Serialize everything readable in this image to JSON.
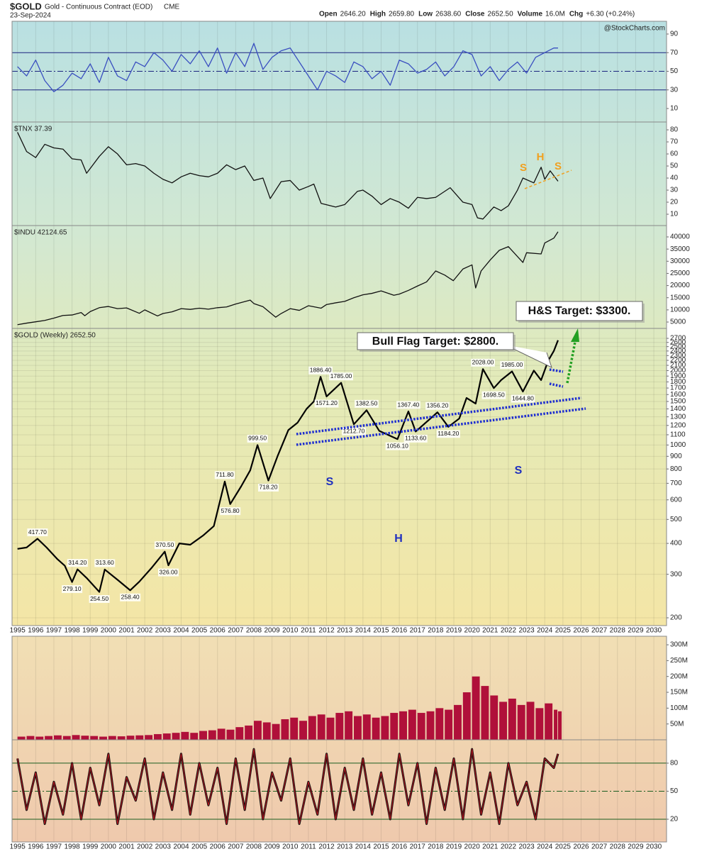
{
  "header": {
    "symbol": "$GOLD",
    "description": "Gold - Continuous Contract (EOD)",
    "exchange": "CME",
    "date": "23-Sep-2024",
    "quote": [
      {
        "label": "Open",
        "value": "2646.20"
      },
      {
        "label": "High",
        "value": "2659.80"
      },
      {
        "label": "Low",
        "value": "2638.60"
      },
      {
        "label": "Close",
        "value": "2652.50"
      },
      {
        "label": "Volume",
        "value": "16.0M"
      },
      {
        "label": "Chg",
        "value": "+6.30 (+0.24%)"
      }
    ],
    "watermark": "@StockCharts.com"
  },
  "chart_data": [
    {
      "type": "line",
      "color": "#3a4fc0",
      "ylim": [
        -4.5,
        103.7
      ],
      "yticks": [
        10,
        30,
        50,
        70,
        90
      ],
      "xlim": [
        1994.7,
        2030.7
      ],
      "reference_lines": [
        {
          "value": 70,
          "style": "solid"
        },
        {
          "value": 50,
          "style": "dashdot"
        },
        {
          "value": 30,
          "style": "solid"
        }
      ],
      "x": [
        1995,
        1995.5,
        1996,
        1996.5,
        1997,
        1997.5,
        1998,
        1998.5,
        1999,
        1999.5,
        2000,
        2000.5,
        2001,
        2001.5,
        2002,
        2002.5,
        2003,
        2003.5,
        2004,
        2004.5,
        2005,
        2005.5,
        2006,
        2006.5,
        2007,
        2007.5,
        2008,
        2008.5,
        2009,
        2009.5,
        2010,
        2010.5,
        2011,
        2011.5,
        2012,
        2012.5,
        2013,
        2013.5,
        2014,
        2014.5,
        2015,
        2015.5,
        2016,
        2016.5,
        2017,
        2017.5,
        2018,
        2018.5,
        2019,
        2019.5,
        2020,
        2020.5,
        2021,
        2021.5,
        2022,
        2022.5,
        2023,
        2023.5,
        2024,
        2024.5,
        2024.73
      ],
      "values": [
        55,
        45,
        62,
        40,
        28,
        35,
        48,
        42,
        58,
        38,
        65,
        45,
        40,
        60,
        55,
        70,
        62,
        50,
        68,
        58,
        72,
        55,
        75,
        48,
        70,
        55,
        80,
        52,
        65,
        72,
        75,
        60,
        45,
        30,
        50,
        45,
        38,
        60,
        55,
        42,
        50,
        35,
        62,
        58,
        48,
        52,
        60,
        45,
        55,
        72,
        68,
        45,
        55,
        40,
        52,
        60,
        48,
        65,
        70,
        75,
        75
      ]
    },
    {
      "type": "line",
      "title": "$TNX 37.39",
      "color": "#111111",
      "ylim": [
        0.6,
        86.5
      ],
      "yticks": [
        10,
        20,
        30,
        40,
        50,
        60,
        70,
        80
      ],
      "xlim": [
        1994.7,
        2030.7
      ],
      "pattern_labels": [
        "S",
        "H",
        "S"
      ],
      "x": [
        1995,
        1995.5,
        1996,
        1996.5,
        1997,
        1997.5,
        1998,
        1998.5,
        1998.8,
        1999.5,
        2000,
        2000.5,
        2001,
        2001.5,
        2002,
        2002.5,
        2003,
        2003.5,
        2004,
        2004.5,
        2005,
        2005.5,
        2006,
        2006.5,
        2007,
        2007.5,
        2008,
        2008.5,
        2008.9,
        2009.5,
        2010,
        2010.5,
        2011,
        2011.3,
        2011.7,
        2012.5,
        2013,
        2013.7,
        2014,
        2014.5,
        2015,
        2015.5,
        2016,
        2016.5,
        2017,
        2017.5,
        2018,
        2018.8,
        2019.5,
        2020,
        2020.3,
        2020.6,
        2021.2,
        2021.6,
        2022,
        2022.5,
        2022.8,
        2023.4,
        2023.8,
        2024,
        2024.3,
        2024.73
      ],
      "values": [
        78,
        62,
        57,
        68,
        65,
        64,
        56,
        55,
        44,
        58,
        66,
        60,
        51,
        52,
        50,
        44,
        39,
        36,
        41,
        44,
        42,
        41,
        44,
        51,
        47,
        50,
        38,
        40,
        23,
        37,
        38,
        30,
        33,
        35,
        19,
        16,
        18,
        29,
        30,
        25,
        18,
        23,
        20,
        15,
        24,
        23,
        24,
        32,
        20,
        18,
        7,
        6,
        16,
        13,
        17,
        30,
        40,
        36,
        49,
        39,
        46,
        37.39
      ]
    },
    {
      "type": "line",
      "title": "$INDU 42124.65",
      "color": "#111111",
      "ylim": [
        2380,
        44670
      ],
      "yticks": [
        5000,
        10000,
        15000,
        20000,
        25000,
        30000,
        35000,
        40000
      ],
      "xlim": [
        1994.7,
        2030.7
      ],
      "x": [
        1995,
        1995.5,
        1996,
        1996.5,
        1997,
        1997.5,
        1998,
        1998.5,
        1998.7,
        1999,
        1999.5,
        2000,
        2000.5,
        2001,
        2001.7,
        2002,
        2002.7,
        2003,
        2003.5,
        2004,
        2004.5,
        2005,
        2005.5,
        2006,
        2006.5,
        2007,
        2007.8,
        2008,
        2008.5,
        2009.2,
        2009.5,
        2010,
        2010.5,
        2011,
        2011.7,
        2012,
        2012.5,
        2013,
        2013.5,
        2014,
        2014.5,
        2015,
        2015.7,
        2016,
        2016.5,
        2017,
        2017.5,
        2018,
        2018.5,
        2018.97,
        2019.5,
        2020,
        2020.2,
        2020.5,
        2021,
        2021.5,
        2022,
        2022.8,
        2023,
        2023.8,
        2024,
        2024.5,
        2024.73
      ],
      "values": [
        3900,
        4550,
        5100,
        5650,
        6600,
        7700,
        7900,
        8900,
        7600,
        9300,
        10900,
        11400,
        10500,
        10800,
        8600,
        10000,
        7500,
        8500,
        9200,
        10500,
        10200,
        10700,
        10300,
        10900,
        11200,
        12400,
        14000,
        12600,
        11300,
        7000,
        8500,
        10500,
        9800,
        11700,
        10700,
        12200,
        12900,
        13500,
        15000,
        16200,
        16800,
        17800,
        16000,
        16500,
        18000,
        19800,
        21500,
        26000,
        24300,
        22000,
        26800,
        28500,
        19000,
        26000,
        30500,
        34500,
        36000,
        29500,
        33500,
        33000,
        37500,
        39500,
        42124.65
      ]
    },
    {
      "type": "line",
      "title": "$GOLD (Weekly) 2652.50",
      "color": "#000000",
      "log_scale": true,
      "grid": true,
      "ylim": [
        186,
        2962
      ],
      "yticks": [
        200,
        300,
        400,
        500,
        600,
        700,
        800,
        900,
        1000,
        1100,
        1200,
        1300,
        1400,
        1500,
        1600,
        1700,
        1800,
        1900,
        2000,
        2100,
        2200,
        2300,
        2400,
        2500,
        2600,
        2700
      ],
      "xlim": [
        1994.7,
        2030.7
      ],
      "xticks": [
        1995,
        1996,
        1997,
        1998,
        1999,
        2000,
        2001,
        2002,
        2003,
        2004,
        2005,
        2006,
        2007,
        2008,
        2009,
        2010,
        2011,
        2012,
        2013,
        2014,
        2015,
        2016,
        2017,
        2018,
        2019,
        2020,
        2021,
        2022,
        2023,
        2024,
        2025,
        2026,
        2027,
        2028,
        2029,
        2030
      ],
      "callouts": [
        "Bull Flag Target: $2800.",
        "H&S Target: $3300."
      ],
      "pattern_labels": [
        "S",
        "H",
        "S"
      ],
      "x": [
        1995,
        1995.5,
        1996.1,
        1996.6,
        1997.2,
        1997.6,
        1998,
        1998.3,
        1998.8,
        1999.5,
        1999.8,
        2000.5,
        2001.2,
        2001.7,
        2002.4,
        2003.1,
        2003.3,
        2003.9,
        2004.5,
        2005.2,
        2005.8,
        2006.4,
        2006.7,
        2007.3,
        2007.8,
        2008.2,
        2008.8,
        2009.3,
        2009.9,
        2010.4,
        2010.9,
        2011.3,
        2011.67,
        2012,
        2012.8,
        2013.5,
        2014.2,
        2014.9,
        2015.9,
        2016.5,
        2016.9,
        2018.1,
        2018.7,
        2019.3,
        2019.7,
        2020.2,
        2020.6,
        2021.2,
        2021.6,
        2022.2,
        2022.8,
        2023.4,
        2023.8,
        2024.2,
        2024.5,
        2024.73
      ],
      "values": [
        380,
        385,
        417.7,
        385,
        345,
        325,
        279.1,
        314.2,
        290,
        254.5,
        313.6,
        285,
        258.4,
        280,
        320,
        370.5,
        326,
        400,
        395,
        430,
        470,
        711.8,
        576.8,
        680,
        790,
        999.5,
        718.2,
        900,
        1150,
        1230,
        1400,
        1500,
        1886.4,
        1571.2,
        1785,
        1212.7,
        1382.5,
        1140,
        1056.1,
        1367.4,
        1133.6,
        1356.2,
        1184.2,
        1280,
        1550,
        1470,
        2028,
        1698.5,
        1830,
        1985,
        1644.8,
        2000,
        1830,
        2200,
        2400,
        2652.5
      ],
      "value_labels": [
        null,
        null,
        "417.70",
        null,
        null,
        null,
        "279.10",
        "314.20",
        null,
        "254.50",
        "313.60",
        null,
        "258.40",
        null,
        null,
        "370.50",
        "326.00",
        null,
        null,
        null,
        null,
        "711.80",
        "576.80",
        null,
        null,
        "999.50",
        "718.20",
        null,
        null,
        null,
        null,
        null,
        "1886.40",
        "1571.20",
        "1785.00",
        "1212.70",
        "1382.50",
        null,
        "1056.10",
        "1367.40",
        "1133.60",
        "1356.20",
        "1184.20",
        null,
        null,
        null,
        "2028.00",
        "1698.50",
        null,
        "1985.00",
        "1644.80",
        null,
        null,
        null,
        null,
        null
      ]
    },
    {
      "type": "bar",
      "color": "#b0103a",
      "ylim": [
        0,
        327
      ],
      "yticks": [
        {
          "value": 50,
          "label": "50M"
        },
        {
          "value": 100,
          "label": "100M"
        },
        {
          "value": 150,
          "label": "150M"
        },
        {
          "value": 200,
          "label": "200M"
        },
        {
          "value": 250,
          "label": "250M"
        },
        {
          "value": 300,
          "label": "300M"
        }
      ],
      "xlim": [
        1994.7,
        2030.7
      ],
      "x": [
        1995,
        1995.5,
        1996,
        1996.5,
        1997,
        1997.5,
        1998,
        1998.5,
        1999,
        1999.5,
        2000,
        2000.5,
        2001,
        2001.5,
        2002,
        2002.5,
        2003,
        2003.5,
        2004,
        2004.5,
        2005,
        2005.5,
        2006,
        2006.5,
        2007,
        2007.5,
        2008,
        2008.5,
        2009,
        2009.5,
        2010,
        2010.5,
        2011,
        2011.5,
        2012,
        2012.5,
        2013,
        2013.5,
        2014,
        2014.5,
        2015,
        2015.5,
        2016,
        2016.5,
        2017,
        2017.5,
        2018,
        2018.5,
        2019,
        2019.5,
        2020,
        2020.5,
        2021,
        2021.5,
        2022,
        2022.5,
        2023,
        2023.5,
        2024,
        2024.5,
        2024.73
      ],
      "values": [
        10,
        12,
        10,
        12,
        14,
        12,
        15,
        13,
        12,
        10,
        12,
        11,
        13,
        14,
        15,
        18,
        20,
        22,
        25,
        22,
        28,
        30,
        35,
        32,
        40,
        45,
        60,
        55,
        50,
        65,
        70,
        60,
        75,
        80,
        70,
        85,
        90,
        75,
        80,
        70,
        75,
        85,
        90,
        95,
        85,
        90,
        100,
        95,
        110,
        150,
        200,
        170,
        140,
        120,
        130,
        110,
        120,
        100,
        115,
        95,
        90
      ]
    },
    {
      "type": "line",
      "color": "#111111",
      "ylim": [
        -4.3,
        105
      ],
      "yticks": [
        20,
        50,
        80
      ],
      "xlim": [
        1994.7,
        2030.7
      ],
      "xticks": [
        1995,
        1996,
        1997,
        1998,
        1999,
        2000,
        2001,
        2002,
        2003,
        2004,
        2005,
        2006,
        2007,
        2008,
        2009,
        2010,
        2011,
        2012,
        2013,
        2014,
        2015,
        2016,
        2017,
        2018,
        2019,
        2020,
        2021,
        2022,
        2023,
        2024,
        2025,
        2026,
        2027,
        2028,
        2029,
        2030
      ],
      "reference_lines": [
        {
          "value": 80,
          "style": "solid"
        },
        {
          "value": 50,
          "style": "dashdot"
        },
        {
          "value": 20,
          "style": "solid"
        }
      ],
      "x": [
        1995,
        1995.5,
        1996,
        1996.5,
        1997,
        1997.5,
        1998,
        1998.5,
        1999,
        1999.5,
        2000,
        2000.5,
        2001,
        2001.5,
        2002,
        2002.5,
        2003,
        2003.5,
        2004,
        2004.5,
        2005,
        2005.5,
        2006,
        2006.5,
        2007,
        2007.5,
        2008,
        2008.5,
        2009,
        2009.5,
        2010,
        2010.5,
        2011,
        2011.5,
        2012,
        2012.5,
        2013,
        2013.5,
        2014,
        2014.5,
        2015,
        2015.5,
        2016,
        2016.5,
        2017,
        2017.5,
        2018,
        2018.5,
        2019,
        2019.5,
        2020,
        2020.5,
        2021,
        2021.5,
        2022,
        2022.5,
        2023,
        2023.5,
        2024,
        2024.5,
        2024.73
      ],
      "values": [
        85,
        30,
        70,
        15,
        60,
        25,
        80,
        20,
        75,
        35,
        90,
        15,
        65,
        40,
        85,
        20,
        70,
        30,
        90,
        25,
        80,
        35,
        75,
        15,
        85,
        30,
        95,
        20,
        70,
        40,
        85,
        15,
        60,
        25,
        90,
        20,
        75,
        30,
        85,
        25,
        70,
        20,
        90,
        35,
        80,
        15,
        75,
        30,
        85,
        20,
        95,
        25,
        70,
        15,
        80,
        35,
        60,
        20,
        85,
        75,
        90
      ]
    }
  ]
}
